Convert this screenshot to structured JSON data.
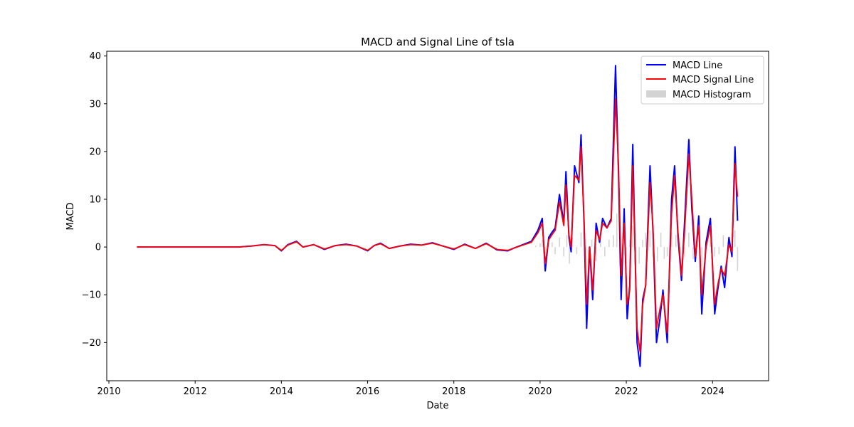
{
  "chart_data": {
    "type": "line",
    "title": "MACD and Signal Line of tsla",
    "xlabel": "Date",
    "ylabel": "MACD",
    "xlim": [
      2009.95,
      2025.3
    ],
    "ylim": [
      -28,
      41
    ],
    "x_ticks": [
      2010,
      2012,
      2014,
      2016,
      2018,
      2020,
      2022,
      2024
    ],
    "x_tick_labels": [
      "2010",
      "2012",
      "2014",
      "2016",
      "2018",
      "2020",
      "2022",
      "2024"
    ],
    "y_ticks": [
      -20,
      -10,
      0,
      10,
      20,
      30,
      40
    ],
    "y_tick_labels": [
      "−20",
      "−10",
      "0",
      "10",
      "20",
      "30",
      "40"
    ],
    "grid": false,
    "legend_position": "top-right",
    "series": [
      {
        "name": "MACD Line",
        "color": "#0000ff",
        "x": [
          2010.65,
          2011.0,
          2011.5,
          2012.0,
          2012.5,
          2013.0,
          2013.3,
          2013.6,
          2013.85,
          2014.0,
          2014.15,
          2014.35,
          2014.5,
          2014.75,
          2015.0,
          2015.25,
          2015.5,
          2015.75,
          2016.0,
          2016.15,
          2016.3,
          2016.5,
          2016.75,
          2017.0,
          2017.25,
          2017.5,
          2017.75,
          2018.0,
          2018.25,
          2018.5,
          2018.75,
          2019.0,
          2019.25,
          2019.4,
          2019.6,
          2019.8,
          2019.95,
          2020.05,
          2020.12,
          2020.2,
          2020.27,
          2020.35,
          2020.45,
          2020.55,
          2020.6,
          2020.67,
          2020.72,
          2020.8,
          2020.9,
          2020.95,
          2021.02,
          2021.08,
          2021.15,
          2021.22,
          2021.3,
          2021.38,
          2021.45,
          2021.55,
          2021.65,
          2021.75,
          2021.82,
          2021.88,
          2021.95,
          2022.02,
          2022.08,
          2022.15,
          2022.25,
          2022.32,
          2022.38,
          2022.45,
          2022.55,
          2022.62,
          2022.7,
          2022.78,
          2022.85,
          2022.95,
          2023.05,
          2023.12,
          2023.2,
          2023.28,
          2023.35,
          2023.45,
          2023.52,
          2023.6,
          2023.68,
          2023.75,
          2023.85,
          2023.95,
          2024.05,
          2024.12,
          2024.2,
          2024.28,
          2024.38,
          2024.45,
          2024.52,
          2024.58
        ],
        "values": [
          0,
          0,
          0,
          0,
          0,
          0,
          0.2,
          0.5,
          0.3,
          -0.8,
          0.5,
          1.2,
          0,
          0.5,
          -0.5,
          0.3,
          0.6,
          0.2,
          -0.8,
          0.3,
          0.8,
          -0.3,
          0.2,
          0.6,
          0.4,
          0.9,
          0.2,
          -0.5,
          0.6,
          -0.3,
          0.8,
          -0.6,
          -0.8,
          -0.2,
          0.5,
          1.2,
          3.5,
          6,
          -5,
          2,
          3,
          4,
          11,
          5,
          15.8,
          2,
          -1,
          17,
          13.5,
          23.5,
          5,
          -17,
          0,
          -11,
          5,
          1,
          6,
          4,
          6,
          38,
          15,
          -11,
          8,
          -15,
          -8,
          21.5,
          -20,
          -25,
          -11,
          -8,
          17,
          3,
          -20,
          -15,
          -9,
          -20,
          10,
          17,
          2,
          -7,
          5,
          22.5,
          8,
          -3,
          6.5,
          -14,
          1,
          6,
          -14,
          -9,
          -4,
          -8.5,
          2,
          -2,
          21,
          5.5
        ]
      },
      {
        "name": "MACD Signal Line",
        "color": "#ff0000",
        "x": [
          2010.65,
          2011.0,
          2011.5,
          2012.0,
          2012.5,
          2013.0,
          2013.3,
          2013.6,
          2013.85,
          2014.0,
          2014.15,
          2014.35,
          2014.5,
          2014.75,
          2015.0,
          2015.25,
          2015.5,
          2015.75,
          2016.0,
          2016.15,
          2016.3,
          2016.5,
          2016.75,
          2017.0,
          2017.25,
          2017.5,
          2017.75,
          2018.0,
          2018.25,
          2018.5,
          2018.75,
          2019.0,
          2019.25,
          2019.4,
          2019.6,
          2019.8,
          2019.95,
          2020.05,
          2020.12,
          2020.2,
          2020.27,
          2020.35,
          2020.45,
          2020.55,
          2020.6,
          2020.67,
          2020.72,
          2020.8,
          2020.9,
          2020.95,
          2021.02,
          2021.08,
          2021.15,
          2021.22,
          2021.3,
          2021.38,
          2021.45,
          2021.55,
          2021.65,
          2021.75,
          2021.82,
          2021.88,
          2021.95,
          2022.02,
          2022.08,
          2022.15,
          2022.25,
          2022.32,
          2022.38,
          2022.45,
          2022.55,
          2022.62,
          2022.7,
          2022.78,
          2022.85,
          2022.95,
          2023.05,
          2023.12,
          2023.2,
          2023.28,
          2023.35,
          2023.45,
          2023.52,
          2023.6,
          2023.68,
          2023.75,
          2023.85,
          2023.95,
          2024.05,
          2024.12,
          2024.2,
          2024.28,
          2024.38,
          2024.45,
          2024.52,
          2024.58
        ],
        "values": [
          0,
          0,
          0,
          0,
          0,
          0,
          0.2,
          0.5,
          0.3,
          -0.7,
          0.4,
          1.1,
          0,
          0.5,
          -0.4,
          0.3,
          0.5,
          0.2,
          -0.7,
          0.3,
          0.7,
          -0.3,
          0.2,
          0.5,
          0.4,
          0.8,
          0.2,
          -0.4,
          0.5,
          -0.3,
          0.7,
          -0.5,
          -0.7,
          -0.2,
          0.4,
          1,
          3,
          5,
          -3.5,
          1.5,
          2.5,
          3.5,
          9.5,
          4.5,
          13,
          2.5,
          0,
          15,
          14,
          21,
          6,
          -12,
          0,
          -9,
          3.5,
          1.5,
          5,
          4,
          5.5,
          31,
          17,
          -6,
          5,
          -12,
          -9,
          17,
          -17,
          -22,
          -12,
          -8,
          13.5,
          4,
          -17,
          -13,
          -10,
          -18,
          7,
          15,
          3,
          -6,
          3,
          19.5,
          10,
          -2,
          4.5,
          -10,
          0,
          4.5,
          -12,
          -8,
          -4.5,
          -6,
          0.5,
          -1,
          17.5,
          10.5
        ]
      },
      {
        "name": "MACD Histogram",
        "color": "#d3d3d3",
        "type": "bar",
        "x": [
          2019.9,
          2020.0,
          2020.05,
          2020.12,
          2020.2,
          2020.28,
          2020.35,
          2020.45,
          2020.55,
          2020.62,
          2020.68,
          2020.75,
          2020.85,
          2020.95,
          2021.05,
          2021.12,
          2021.2,
          2021.3,
          2021.4,
          2021.5,
          2021.6,
          2021.7,
          2021.78,
          2021.85,
          2021.92,
          2022.0,
          2022.08,
          2022.15,
          2022.22,
          2022.3,
          2022.38,
          2022.45,
          2022.55,
          2022.62,
          2022.72,
          2022.8,
          2022.88,
          2022.95,
          2023.05,
          2023.15,
          2023.25,
          2023.35,
          2023.45,
          2023.55,
          2023.65,
          2023.75,
          2023.85,
          2023.95,
          2024.05,
          2024.15,
          2024.25,
          2024.35,
          2024.45,
          2024.52,
          2024.58
        ],
        "values": [
          0.3,
          0.8,
          1.5,
          -1.5,
          0.8,
          1,
          -1.5,
          2,
          -2,
          2.5,
          -3.5,
          2,
          -1.5,
          3,
          -2.5,
          -4.5,
          1.5,
          -3,
          2,
          -2,
          1.5,
          2.5,
          7,
          -4,
          3,
          -3.5,
          1.5,
          4.5,
          -3.5,
          -3.5,
          1.5,
          3,
          3.5,
          -2,
          -3,
          3,
          -2.5,
          -2,
          3,
          2.5,
          -1.5,
          -2,
          3,
          -2.5,
          2,
          -4,
          1,
          1.5,
          -2,
          -1.5,
          2.5,
          -2.5,
          3,
          3.5,
          -5
        ]
      }
    ]
  }
}
